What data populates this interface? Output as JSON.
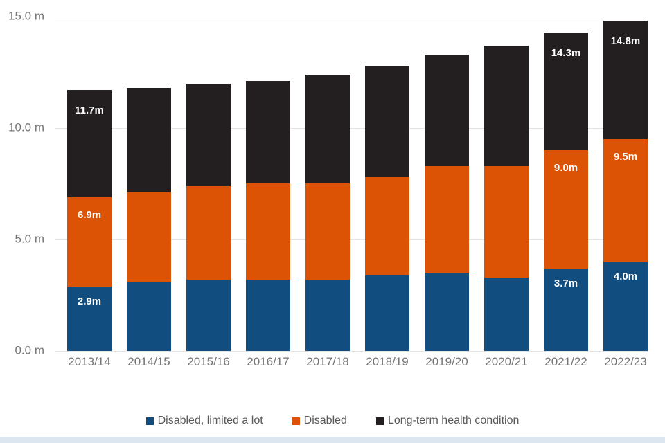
{
  "chart_data": {
    "type": "bar",
    "stacked": true,
    "title": "",
    "xlabel": "",
    "ylabel": "",
    "unit": "millions of people",
    "categories": [
      "2013/14",
      "2014/15",
      "2015/16",
      "2016/17",
      "2017/18",
      "2018/19",
      "2019/20",
      "2020/21",
      "2021/22",
      "2022/23"
    ],
    "series": [
      {
        "name": "Disabled, limited a lot",
        "color": "#114d7e",
        "cumulative_values": [
          2.9,
          3.1,
          3.2,
          3.2,
          3.2,
          3.4,
          3.5,
          3.3,
          3.7,
          4.0
        ]
      },
      {
        "name": "Disabled",
        "color": "#dd5306",
        "cumulative_values": [
          6.9,
          7.1,
          7.4,
          7.5,
          7.5,
          7.8,
          8.3,
          8.3,
          9.0,
          9.5
        ]
      },
      {
        "name": "Long-term health condition",
        "color": "#231f20",
        "cumulative_values": [
          11.7,
          11.8,
          12.0,
          12.1,
          12.4,
          12.8,
          13.3,
          13.7,
          14.3,
          14.8
        ]
      }
    ],
    "data_labels": [
      {
        "category_index": 0,
        "labels_by_series": [
          "2.9m",
          "6.9m",
          "11.7m"
        ]
      },
      {
        "category_index": 8,
        "labels_by_series": [
          "3.7m",
          "9.0m",
          "14.3m"
        ]
      },
      {
        "category_index": 9,
        "labels_by_series": [
          "4.0m",
          "9.5m",
          "14.8m"
        ]
      }
    ],
    "y_ticks": [
      {
        "value": 0,
        "label": "0.0 m"
      },
      {
        "value": 5,
        "label": "5.0 m"
      },
      {
        "value": 10,
        "label": "10.0 m"
      },
      {
        "value": 15,
        "label": "15.0 m"
      }
    ],
    "ylim": [
      0,
      15
    ],
    "grid": true,
    "legend_position": "bottom"
  },
  "legend": {
    "items": [
      {
        "label": "Disabled, limited a lot",
        "color": "#114d7e"
      },
      {
        "label": "Disabled",
        "color": "#dd5306"
      },
      {
        "label": "Long-term health condition",
        "color": "#231f20"
      }
    ]
  },
  "colors": {
    "background": "#ffffff",
    "gridline": "#e4e4e4",
    "axis_text": "#757575",
    "legend_text": "#595959",
    "data_label_text": "#ffffff",
    "bottom_strip": "#dce6f1"
  }
}
